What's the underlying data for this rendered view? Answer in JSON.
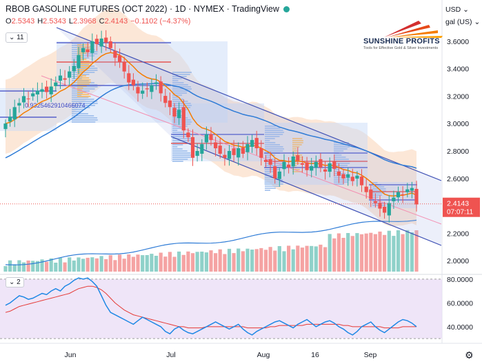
{
  "header": {
    "title": "RBOB GASOLINE FUTURES (OCT 2022) · 1D · NYMEX · TradingView",
    "ohlc": [
      {
        "k": "O",
        "v": "2.5343"
      },
      {
        "k": "H",
        "v": "2.5343"
      },
      {
        "k": "L",
        "v": "2.3968"
      },
      {
        "k": "C",
        "v": "2.4143"
      },
      {
        "k": "",
        "v": "−0.1102 (−4.37%)"
      }
    ],
    "main_pane_pill": "11",
    "rsi_pane_pill": "2",
    "currency": "USD",
    "unit": "gal (US)",
    "vp_label": "0.9325462910466074"
  },
  "logo": {
    "brand": "SUNSHINE PROFITS",
    "tagline": "Tools for Effective Gold & Silver Investments"
  },
  "chart_data": [
    {
      "type": "candlestick",
      "yticks": [
        "3.6000",
        "3.4000",
        "3.2000",
        "3.0000",
        "2.8000",
        "2.6000",
        "2.2000",
        "2.0000"
      ],
      "ylim": [
        1.9,
        3.7
      ],
      "xticks": [
        "Jun",
        "Jul",
        "Aug",
        "16",
        "Sep"
      ],
      "last_price": "2.4143",
      "countdown": "07:07:11",
      "closes": [
        3.0,
        3.05,
        3.12,
        3.15,
        3.2,
        3.18,
        3.22,
        3.24,
        3.25,
        3.23,
        3.27,
        3.3,
        3.35,
        3.32,
        3.38,
        3.42,
        3.5,
        3.55,
        3.52,
        3.6,
        3.58,
        3.62,
        3.59,
        3.55,
        3.48,
        3.45,
        3.38,
        3.3,
        3.28,
        3.22,
        3.24,
        3.25,
        3.28,
        3.3,
        3.22,
        3.15,
        3.12,
        3.05,
        3.1,
        2.95,
        2.9,
        2.75,
        2.8,
        2.85,
        2.92,
        2.88,
        2.82,
        2.78,
        2.75,
        2.8,
        2.77,
        2.82,
        2.78,
        2.85,
        2.88,
        2.82,
        2.75,
        2.72,
        2.7,
        2.6,
        2.65,
        2.72,
        2.68,
        2.76,
        2.73,
        2.7,
        2.66,
        2.69,
        2.72,
        2.68,
        2.65,
        2.71,
        2.67,
        2.62,
        2.6,
        2.63,
        2.58,
        2.62,
        2.55,
        2.5,
        2.45,
        2.42,
        2.38,
        2.35,
        2.42,
        2.46,
        2.5,
        2.48,
        2.52,
        2.53,
        2.41
      ]
    },
    {
      "type": "line",
      "name": "RSI",
      "yticks": [
        "80.0000",
        "60.0000",
        "40.0000"
      ],
      "ylim": [
        26,
        84
      ],
      "rsi": [
        58,
        60,
        63,
        66,
        65,
        63,
        64,
        66,
        68,
        67,
        70,
        72,
        70,
        74,
        76,
        79,
        81,
        80,
        81,
        78,
        74,
        66,
        58,
        52,
        50,
        48,
        46,
        44,
        42,
        45,
        48,
        46,
        44,
        42,
        40,
        36,
        34,
        38,
        40,
        37,
        35,
        34,
        36,
        38,
        40,
        42,
        44,
        42,
        40,
        38,
        40,
        42,
        38,
        35,
        33,
        36,
        38,
        40,
        42,
        44,
        45,
        43,
        41,
        39,
        42,
        44,
        46,
        43,
        40,
        42,
        44,
        45,
        43,
        40,
        38,
        35,
        33,
        36,
        40,
        42,
        44,
        40,
        37,
        35,
        38,
        41,
        44,
        46,
        45,
        43,
        40
      ],
      "signal": [
        52,
        53,
        55,
        57,
        58,
        59,
        60,
        61,
        62,
        63,
        64,
        65,
        66,
        67,
        68,
        70,
        72,
        73,
        74,
        74,
        73,
        71,
        68,
        64,
        60,
        57,
        54,
        52,
        50,
        49,
        48,
        47,
        46,
        45,
        44,
        43,
        42,
        41,
        40,
        40,
        39,
        39,
        39,
        39,
        40,
        40,
        40,
        40,
        40,
        40,
        40,
        40,
        40,
        39,
        39,
        39,
        39,
        39,
        40,
        40,
        41,
        41,
        41,
        41,
        41,
        41,
        42,
        42,
        42,
        42,
        42,
        42,
        42,
        42,
        41,
        41,
        40,
        40,
        40,
        40,
        40,
        40,
        40,
        39,
        39,
        39,
        39,
        40,
        40,
        40,
        40
      ]
    }
  ],
  "colors": {
    "up": "#26a69a",
    "down": "#ef5350",
    "ema_fast": "#f57c00",
    "ema_slow": "#2e7bd6",
    "channel": "#3f51b5",
    "rsi_line": "#1e88e5",
    "rsi_signal": "#e53935",
    "rsi_band": "#e9dcf5"
  }
}
